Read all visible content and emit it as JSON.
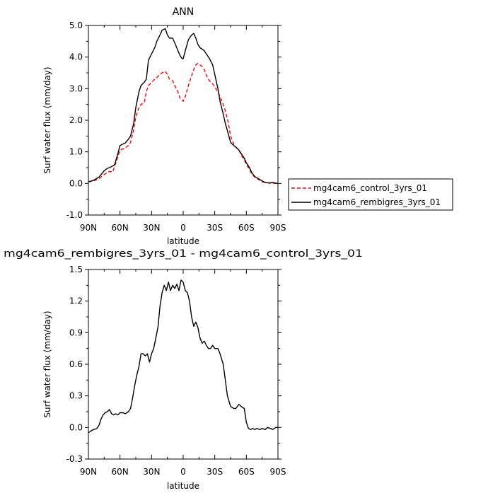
{
  "chart_data": [
    {
      "type": "line",
      "title": "ANN",
      "xlabel": "latitude",
      "ylabel": "Surf water flux (mm/day)",
      "x_ticks": [
        "90N",
        "60N",
        "30N",
        "0",
        "30S",
        "60S",
        "90S"
      ],
      "x_range": [
        90,
        -90
      ],
      "y_ticks": [
        "-1.0",
        "0.0",
        "1.0",
        "2.0",
        "3.0",
        "4.0",
        "5.0"
      ],
      "ylim": [
        -1.0,
        5.0
      ],
      "legend_position": "right",
      "series": [
        {
          "name": "mg4cam6_control_3yrs_01",
          "color": "#ff0000",
          "dash": "dashed",
          "x": [
            90,
            85,
            80,
            75,
            72,
            70,
            67,
            65,
            62,
            60,
            57,
            55,
            52,
            50,
            47,
            45,
            42,
            40,
            37,
            35,
            33,
            30,
            27,
            25,
            22,
            20,
            17,
            15,
            13,
            10,
            8,
            5,
            3,
            1,
            0,
            -2,
            -5,
            -8,
            -10,
            -12,
            -14,
            -16,
            -18,
            -20,
            -23,
            -25,
            -28,
            -30,
            -33,
            -35,
            -38,
            -40,
            -43,
            -45,
            -48,
            -50,
            -53,
            -55,
            -58,
            -60,
            -63,
            -65,
            -68,
            -70,
            -73,
            -75,
            -78,
            -80,
            -83,
            -85,
            -88,
            -90
          ],
          "y": [
            0.05,
            0.08,
            0.15,
            0.28,
            0.34,
            0.38,
            0.36,
            0.55,
            0.85,
            1.05,
            1.1,
            1.12,
            1.2,
            1.3,
            1.7,
            2.1,
            2.4,
            2.5,
            2.55,
            2.9,
            3.1,
            3.2,
            3.3,
            3.35,
            3.45,
            3.5,
            3.55,
            3.45,
            3.3,
            3.25,
            3.1,
            2.9,
            2.7,
            2.65,
            2.6,
            2.75,
            3.1,
            3.4,
            3.6,
            3.75,
            3.8,
            3.75,
            3.7,
            3.6,
            3.35,
            3.25,
            3.15,
            3.05,
            2.9,
            2.75,
            2.5,
            2.3,
            1.9,
            1.5,
            1.25,
            1.15,
            1.05,
            0.9,
            0.75,
            0.6,
            0.45,
            0.3,
            0.2,
            0.15,
            0.1,
            0.05,
            0.03,
            0.02,
            0.0,
            0.0,
            0.0,
            0.0
          ]
        },
        {
          "name": "mg4cam6_rembigres_3yrs_01",
          "color": "#000000",
          "dash": "solid",
          "x": [
            90,
            85,
            80,
            75,
            72,
            70,
            67,
            65,
            62,
            60,
            57,
            55,
            52,
            50,
            47,
            45,
            42,
            40,
            37,
            35,
            33,
            30,
            27,
            25,
            22,
            20,
            17,
            15,
            13,
            10,
            8,
            5,
            3,
            1,
            0,
            -2,
            -5,
            -8,
            -10,
            -12,
            -14,
            -16,
            -18,
            -20,
            -23,
            -25,
            -28,
            -30,
            -33,
            -35,
            -38,
            -40,
            -43,
            -45,
            -48,
            -50,
            -53,
            -55,
            -58,
            -60,
            -63,
            -65,
            -68,
            -70,
            -73,
            -75,
            -78,
            -80,
            -83,
            -85,
            -88,
            -90
          ],
          "y": [
            0.05,
            0.1,
            0.2,
            0.4,
            0.48,
            0.5,
            0.55,
            0.6,
            0.95,
            1.2,
            1.25,
            1.28,
            1.4,
            1.5,
            1.9,
            2.4,
            2.9,
            3.1,
            3.2,
            3.3,
            3.9,
            4.1,
            4.3,
            4.5,
            4.7,
            4.85,
            4.9,
            4.7,
            4.6,
            4.6,
            4.45,
            4.2,
            4.05,
            3.95,
            3.95,
            4.2,
            4.55,
            4.7,
            4.75,
            4.6,
            4.4,
            4.3,
            4.25,
            4.2,
            4.05,
            3.95,
            3.75,
            3.45,
            3.0,
            2.6,
            2.2,
            1.9,
            1.55,
            1.3,
            1.2,
            1.15,
            1.05,
            0.95,
            0.8,
            0.65,
            0.5,
            0.35,
            0.22,
            0.18,
            0.12,
            0.08,
            0.03,
            0.02,
            0.02,
            0.03,
            0.01,
            0.0
          ]
        }
      ]
    },
    {
      "type": "line",
      "title": "mg4cam6_rembigres_3yrs_01 - mg4cam6_control_3yrs_01",
      "xlabel": "latitude",
      "ylabel": "Surf water flux (mm/day)",
      "x_ticks": [
        "90N",
        "60N",
        "30N",
        "0",
        "30S",
        "60S",
        "90S"
      ],
      "x_range": [
        90,
        -90
      ],
      "y_ticks": [
        "-0.3",
        "0.0",
        "0.3",
        "0.6",
        "0.9",
        "1.2",
        "1.5"
      ],
      "ylim": [
        -0.3,
        1.5
      ],
      "series": [
        {
          "color": "#000000",
          "dash": "solid",
          "x": [
            90,
            87,
            85,
            82,
            80,
            78,
            76,
            74,
            72,
            70,
            68,
            66,
            64,
            62,
            60,
            57,
            55,
            52,
            50,
            48,
            46,
            44,
            42,
            40,
            38,
            36,
            34,
            32,
            30,
            28,
            26,
            24,
            22,
            20,
            18,
            16,
            14,
            12,
            10,
            8,
            6,
            4,
            2,
            0,
            -2,
            -4,
            -6,
            -8,
            -10,
            -12,
            -14,
            -16,
            -18,
            -20,
            -22,
            -24,
            -26,
            -28,
            -30,
            -33,
            -35,
            -38,
            -40,
            -42,
            -45,
            -48,
            -50,
            -53,
            -55,
            -58,
            -60,
            -62,
            -64,
            -66,
            -68,
            -70,
            -73,
            -75,
            -78,
            -80,
            -83,
            -85,
            -88,
            -90
          ],
          "y": [
            -0.05,
            -0.03,
            -0.02,
            -0.01,
            0.02,
            0.08,
            0.12,
            0.14,
            0.15,
            0.17,
            0.13,
            0.12,
            0.13,
            0.12,
            0.14,
            0.14,
            0.13,
            0.15,
            0.18,
            0.28,
            0.4,
            0.5,
            0.58,
            0.7,
            0.7,
            0.68,
            0.7,
            0.62,
            0.7,
            0.75,
            0.85,
            0.95,
            1.15,
            1.28,
            1.35,
            1.3,
            1.38,
            1.3,
            1.35,
            1.32,
            1.36,
            1.3,
            1.4,
            1.38,
            1.3,
            1.28,
            1.2,
            1.05,
            0.96,
            1.0,
            0.95,
            0.85,
            0.8,
            0.82,
            0.78,
            0.75,
            0.75,
            0.78,
            0.75,
            0.75,
            0.7,
            0.6,
            0.45,
            0.3,
            0.2,
            0.18,
            0.18,
            0.22,
            0.2,
            0.18,
            0.05,
            -0.01,
            -0.02,
            -0.01,
            -0.02,
            -0.01,
            -0.02,
            -0.01,
            -0.02,
            0.0,
            -0.01,
            -0.02,
            0.0,
            0.0
          ]
        }
      ]
    }
  ]
}
